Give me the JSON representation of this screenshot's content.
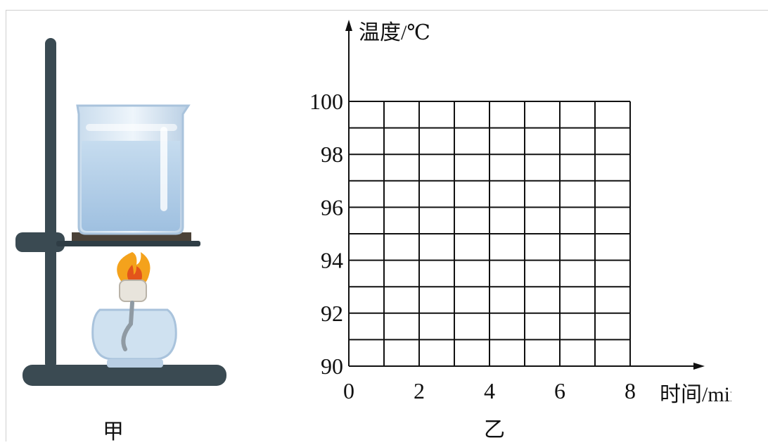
{
  "figure_a": {
    "caption": "甲",
    "items": [
      "iron-stand",
      "beaker-of-water",
      "wire-gauze",
      "alcohol-lamp-flame",
      "alcohol-lamp"
    ]
  },
  "figure_b": {
    "caption": "乙"
  },
  "chart_data": {
    "type": "line",
    "ylabel": "温度/℃",
    "xlabel": "时间/min",
    "xlim": [
      0,
      8
    ],
    "ylim": [
      90,
      100
    ],
    "x_major_ticks": [
      "0",
      "2",
      "4",
      "6",
      "8"
    ],
    "y_major_ticks": [
      "90",
      "92",
      "94",
      "96",
      "98",
      "100"
    ],
    "grid": true,
    "grid_x_step": 1,
    "grid_y_step": 1,
    "series": []
  },
  "colors": {
    "stand": "#3a4a52",
    "water": "#b8d3ea",
    "glass": "#dde9f3",
    "flame_outer": "#f4a21c",
    "flame_inner": "#e3541b",
    "lamp": "#cfe1f0"
  }
}
